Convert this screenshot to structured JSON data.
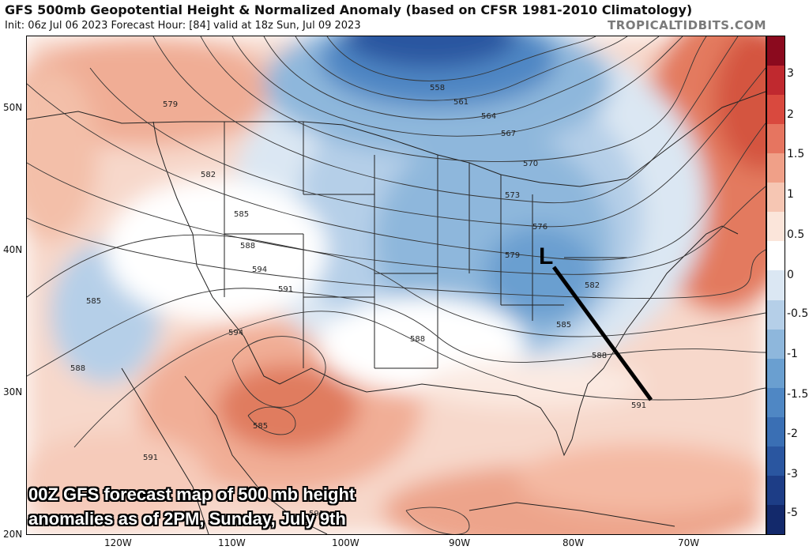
{
  "header": {
    "title": "GFS 500mb Geopotential Height & Normalized Anomaly (based on CFSR 1981-2010 Climatology)",
    "subtitle": "Init: 06z Jul 06 2023   Forecast Hour: [84]   valid at 18z Sun, Jul 09 2023",
    "brand": "TROPICALTIDBITS.COM"
  },
  "map": {
    "latitude_labels": [
      "50N",
      "40N",
      "30N",
      "20N"
    ],
    "longitude_labels": [
      "120W",
      "110W",
      "100W",
      "90W",
      "80W",
      "70W"
    ],
    "contour_labels": [
      "558",
      "561",
      "564",
      "567",
      "570",
      "573",
      "576",
      "579",
      "582",
      "585",
      "588",
      "591",
      "594",
      "579",
      "582",
      "585",
      "588",
      "591",
      "594",
      "585",
      "588",
      "591",
      "591",
      "588",
      "585",
      "582"
    ],
    "low_marker": "L",
    "colors": {
      "anomaly_negative": "#5b93cf",
      "anomaly_positive": "#e06a4e",
      "contour": "#333333",
      "trough_axis": "#000000"
    }
  },
  "colorbar": {
    "ticks": [
      "3",
      "2",
      "1.5",
      "1",
      "0.5",
      "0",
      "-0.5",
      "-1",
      "-1.5",
      "-2",
      "-3",
      "-5"
    ],
    "colors": [
      "#8b0a1e",
      "#c0292f",
      "#d9493e",
      "#e67560",
      "#f0a088",
      "#f6c6b3",
      "#fbe5da",
      "#ffffff",
      "#dbe7f3",
      "#b5cfe8",
      "#8eb7dc",
      "#6a9fd0",
      "#4f87c4",
      "#3a6fb4",
      "#2a56a0",
      "#1d3d86",
      "#13296b"
    ]
  },
  "overlay": {
    "line1": "00Z GFS forecast map of 500 mb height",
    "line2": "anomalies as of 2PM, Sunday, July 9th"
  }
}
